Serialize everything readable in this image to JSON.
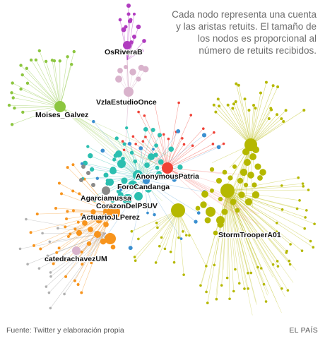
{
  "caption": {
    "lines": [
      "Cada nodo representa una cuenta",
      "y las aristas retuits. El tamaño de",
      "los nodos es proporcional al",
      "número de retuits recibidos."
    ]
  },
  "footer": {
    "source": "Fuente: Twitter y elaboración propia",
    "publisher": "EL PAÍS"
  },
  "colors": {
    "green": "#8cc63f",
    "olive": "#b5b800",
    "purple": "#b03bbf",
    "pink": "#d9b3cc",
    "orange": "#f7941d",
    "red": "#ef4136",
    "teal": "#2bbfb0",
    "blue": "#3a8fd0",
    "gray": "#8a8a8a"
  },
  "labeled_nodes": [
    {
      "name": "OsRiveraB",
      "color": "purple"
    },
    {
      "name": "VzlaEstudioOnce",
      "color": "pink"
    },
    {
      "name": "Moises_Galvez",
      "color": "green"
    },
    {
      "name": "AnonymousPatria",
      "color": "red"
    },
    {
      "name": "ForoCandanga",
      "color": "teal"
    },
    {
      "name": "Agarciamussa",
      "color": "gray"
    },
    {
      "name": "CorazonDelPSUV",
      "color": "teal"
    },
    {
      "name": "ActuarioJLPerez",
      "color": "orange"
    },
    {
      "name": "StormTrooperA01",
      "color": "olive"
    },
    {
      "name": "catedrachavezUM",
      "color": "pink"
    }
  ]
}
